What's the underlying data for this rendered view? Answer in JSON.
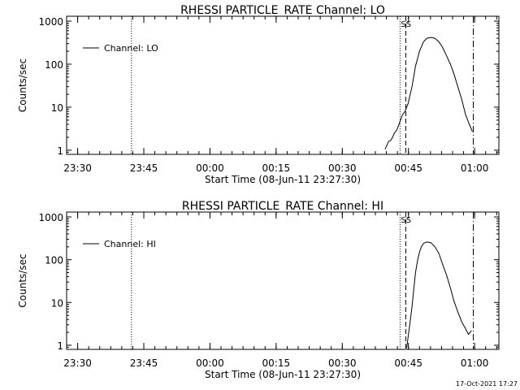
{
  "footer": {
    "timestamp": "17-Oct-2021 17:27"
  },
  "chart_data": [
    {
      "type": "line",
      "title": "RHESSI PARTICLE_RATE Channel: LO",
      "xlabel": "Start Time (08-Jun-11 23:27:30)",
      "ylabel": "Counts/sec",
      "x_unit": "minutes since 23:27:30",
      "xlim": [
        0,
        98
      ],
      "ylim": [
        0.8,
        1300
      ],
      "yscale": "log",
      "xticks": [
        {
          "value": 2.5,
          "label": "23:30"
        },
        {
          "value": 17.5,
          "label": "23:45"
        },
        {
          "value": 32.5,
          "label": "00:00"
        },
        {
          "value": 47.5,
          "label": "00:15"
        },
        {
          "value": 62.5,
          "label": "00:30"
        },
        {
          "value": 77.5,
          "label": "00:45"
        },
        {
          "value": 92.5,
          "label": "01:00"
        }
      ],
      "yticks": [
        {
          "value": 1,
          "label": "1"
        },
        {
          "value": 10,
          "label": "10"
        },
        {
          "value": 100,
          "label": "100"
        },
        {
          "value": 1000,
          "label": "1000"
        }
      ],
      "legend": {
        "position": "top-left",
        "label": "Channel: LO"
      },
      "flag_label": "SS",
      "markers": [
        {
          "x": 14.7,
          "style": "dotted"
        },
        {
          "x": 75.6,
          "style": "dotted"
        },
        {
          "x": 76.9,
          "style": "dashed"
        },
        {
          "x": 92.2,
          "style": "dashdot"
        }
      ],
      "series": [
        {
          "name": "Channel: LO",
          "x": [
            72.2,
            72.6,
            73.0,
            73.5,
            73.9,
            74.3,
            74.8,
            75.2,
            75.7,
            76.1,
            76.7,
            77.4,
            78.3,
            79.1,
            80.0,
            80.9,
            81.7,
            82.6,
            83.5,
            84.4,
            85.2,
            86.1,
            87.0,
            87.8,
            88.7,
            89.6,
            90.4,
            91.3,
            91.7,
            92.0
          ],
          "y": [
            1.05,
            1.3,
            1.6,
            1.7,
            2.0,
            2.5,
            2.9,
            3.6,
            5.0,
            6.5,
            8.0,
            12,
            30,
            90,
            200,
            330,
            400,
            420,
            400,
            330,
            250,
            160,
            100,
            60,
            30,
            15,
            7,
            4,
            3.2,
            2.7
          ]
        }
      ]
    },
    {
      "type": "line",
      "title": "RHESSI PARTICLE_RATE Channel: HI",
      "xlabel": "Start Time (08-Jun-11 23:27:30)",
      "ylabel": "Counts/sec",
      "x_unit": "minutes since 23:27:30",
      "xlim": [
        0,
        98
      ],
      "ylim": [
        0.8,
        1300
      ],
      "yscale": "log",
      "xticks": [
        {
          "value": 2.5,
          "label": "23:30"
        },
        {
          "value": 17.5,
          "label": "23:45"
        },
        {
          "value": 32.5,
          "label": "00:00"
        },
        {
          "value": 47.5,
          "label": "00:15"
        },
        {
          "value": 62.5,
          "label": "00:30"
        },
        {
          "value": 77.5,
          "label": "00:45"
        },
        {
          "value": 92.5,
          "label": "01:00"
        }
      ],
      "yticks": [
        {
          "value": 1,
          "label": "1"
        },
        {
          "value": 10,
          "label": "10"
        },
        {
          "value": 100,
          "label": "100"
        },
        {
          "value": 1000,
          "label": "1000"
        }
      ],
      "legend": {
        "position": "top-left",
        "label": "Channel: HI"
      },
      "flag_label": "SS",
      "markers": [
        {
          "x": 14.7,
          "style": "dotted"
        },
        {
          "x": 75.6,
          "style": "dotted"
        },
        {
          "x": 76.9,
          "style": "dashed"
        },
        {
          "x": 92.2,
          "style": "dashdot"
        }
      ],
      "series": [
        {
          "name": "Channel: HI",
          "x": [
            77.1,
            77.4,
            77.8,
            78.3,
            78.7,
            79.1,
            79.6,
            80.0,
            80.4,
            80.9,
            81.7,
            82.6,
            83.5,
            84.4,
            85.2,
            86.1,
            87.0,
            87.8,
            88.7,
            89.6,
            90.4,
            91.1,
            91.5,
            91.8
          ],
          "y": [
            0.85,
            1.5,
            3,
            8,
            20,
            50,
            100,
            150,
            200,
            240,
            260,
            250,
            200,
            140,
            80,
            45,
            22,
            11,
            6,
            3.5,
            2.5,
            1.8,
            2.0,
            2.2
          ]
        }
      ]
    }
  ]
}
